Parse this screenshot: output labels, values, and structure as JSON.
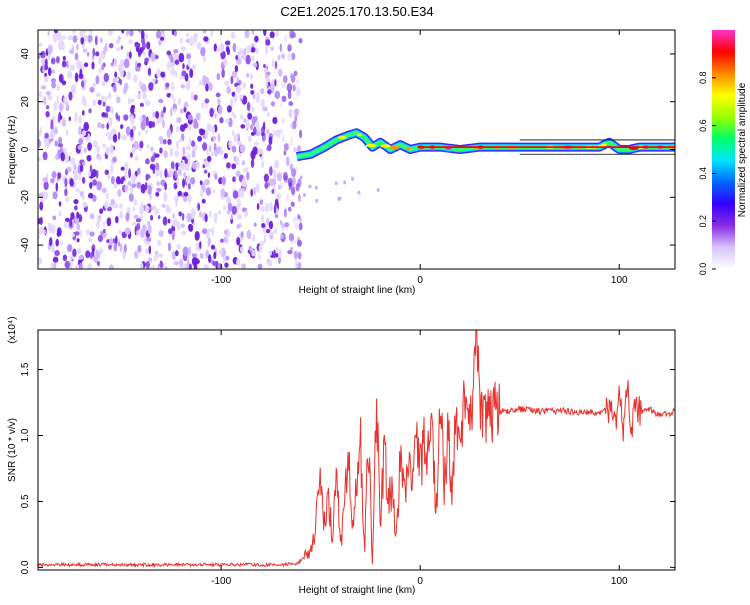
{
  "title": "C2E1.2025.170.13.50.E34",
  "chart_data": [
    {
      "type": "heatmap",
      "xlabel": "Height of straight line (km)",
      "ylabel": "Frequency (Hz)",
      "xlim": [
        -192,
        128
      ],
      "ylim": [
        -50,
        50
      ],
      "xticks": [
        -100,
        0,
        100
      ],
      "yticks": [
        -40,
        -20,
        0,
        20,
        40
      ],
      "xtick_labels": [
        "-100",
        "0",
        "100"
      ],
      "ytick_labels": [
        "-40",
        "-20",
        "0",
        "20",
        "40"
      ],
      "grid": false,
      "noise_region_x": [
        -192,
        -62
      ],
      "signal_track": {
        "x": [
          -62,
          -55,
          -48,
          -42,
          -36,
          -32,
          -28,
          -24,
          -20,
          -15,
          -10,
          -5,
          0,
          10,
          20,
          30,
          40,
          60,
          80,
          90,
          95,
          100,
          105,
          110,
          128
        ],
        "freq": [
          -3,
          -2,
          1,
          4,
          6,
          7,
          5,
          1,
          3,
          0,
          2,
          0,
          1,
          1,
          0,
          1,
          1,
          1,
          1,
          1,
          3,
          0,
          0,
          1,
          1
        ]
      },
      "colorbar": {
        "label": "Normalized spectral amplitude",
        "range": [
          0,
          1
        ],
        "ticks": [
          0.0,
          0.2,
          0.4,
          0.6,
          0.8
        ],
        "tick_labels": [
          "0.0",
          "0.2",
          "0.4",
          "0.6",
          "0.8"
        ],
        "colors": [
          "#ffffff",
          "#d8c4ff",
          "#8a2be2",
          "#3300ff",
          "#0066ff",
          "#00e5ff",
          "#00ff66",
          "#99ff00",
          "#ffff00",
          "#ff8800",
          "#ff0000",
          "#ff33cc"
        ]
      }
    },
    {
      "type": "line",
      "xlabel": "Height of straight line (km)",
      "ylabel": "SNR (10 * v/v)",
      "multiplier": "(x10⁴)",
      "xlim": [
        -192,
        128
      ],
      "ylim": [
        -0.02,
        1.8
      ],
      "xticks": [
        -100,
        0,
        100
      ],
      "yticks": [
        0.0,
        0.5,
        1.0,
        1.5
      ],
      "xtick_labels": [
        "-100",
        "0",
        "100"
      ],
      "ytick_labels": [
        "0.0",
        "0.5",
        "1.0",
        "1.5"
      ],
      "grid": false,
      "color": "#e8322e",
      "series": [
        {
          "x": [
            -192,
            -150,
            -100,
            -70,
            -62,
            -56,
            -53,
            -50,
            -48,
            -46,
            -44,
            -42,
            -40,
            -38,
            -36,
            -34,
            -32,
            -30,
            -28,
            -26,
            -24,
            -22,
            -20,
            -18,
            -16,
            -14,
            -12,
            -10,
            -8,
            -6,
            -4,
            -2,
            0,
            2,
            4,
            6,
            8,
            10,
            12,
            14,
            16,
            18,
            20,
            22,
            24,
            26,
            28,
            30,
            32,
            34,
            36,
            38,
            40,
            50,
            60,
            70,
            80,
            90,
            95,
            98,
            100,
            102,
            104,
            106,
            108,
            110,
            115,
            120,
            128
          ],
          "values": [
            0.02,
            0.02,
            0.02,
            0.02,
            0.03,
            0.1,
            0.25,
            0.7,
            0.3,
            0.55,
            0.2,
            0.75,
            0.15,
            0.45,
            0.9,
            0.3,
            0.6,
            0.95,
            0.1,
            1.0,
            0.0,
            1.25,
            0.35,
            0.9,
            0.5,
            0.6,
            0.2,
            0.85,
            0.55,
            0.8,
            0.65,
            0.95,
            0.75,
            0.95,
            0.85,
            1.05,
            0.35,
            1.3,
            0.6,
            1.05,
            0.45,
            1.2,
            0.75,
            1.28,
            1.0,
            1.2,
            1.8,
            1.25,
            1.12,
            1.2,
            1.15,
            1.22,
            1.18,
            1.2,
            1.18,
            1.19,
            1.17,
            1.18,
            1.2,
            1.05,
            1.4,
            0.95,
            1.45,
            1.05,
            1.25,
            1.18,
            1.2,
            1.15,
            1.18
          ]
        }
      ]
    }
  ]
}
